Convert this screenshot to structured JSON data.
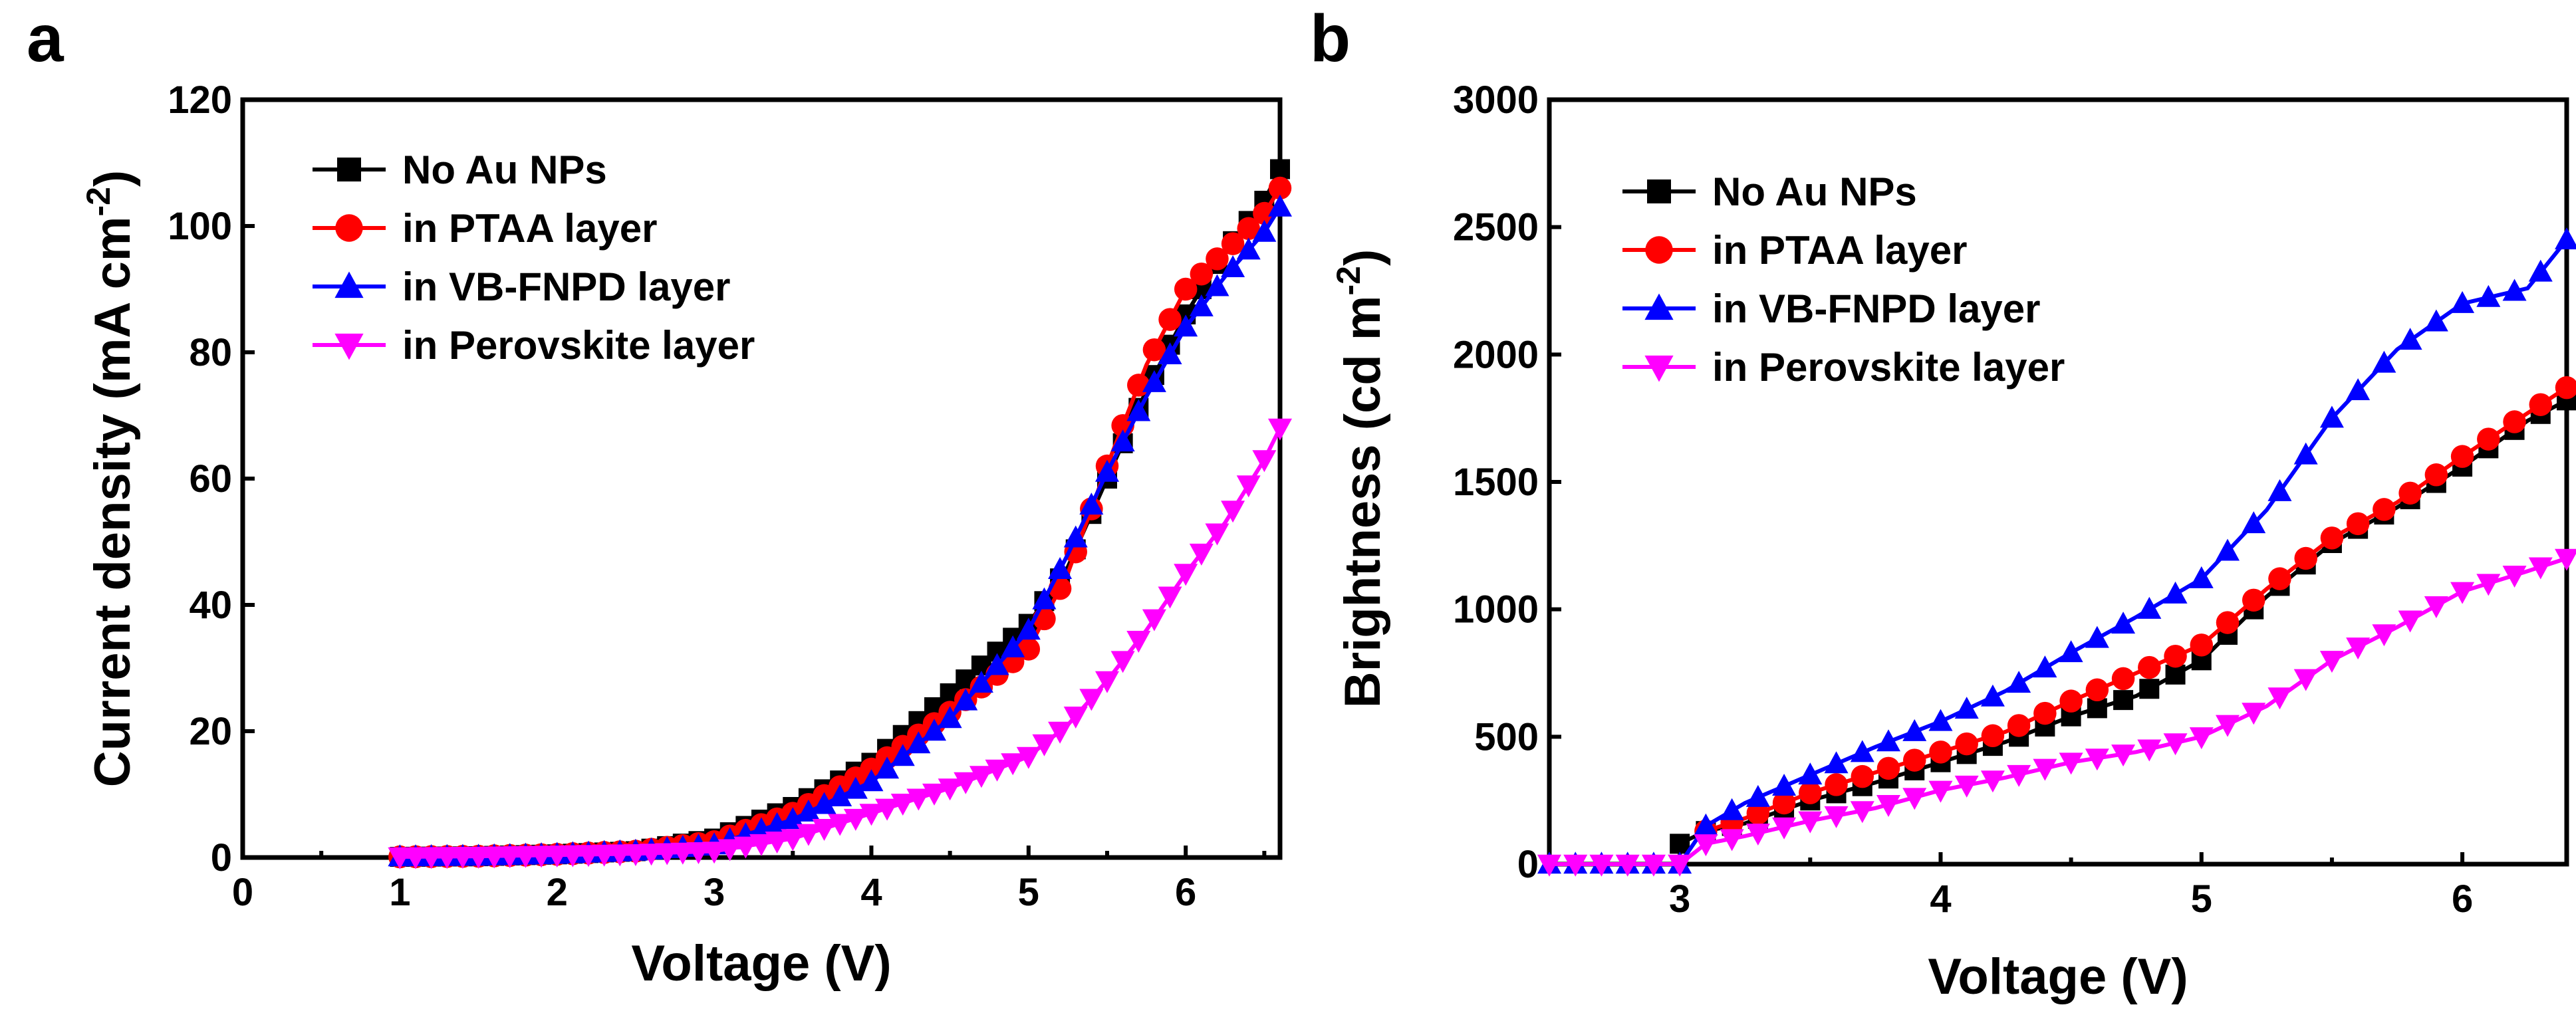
{
  "figure_labels": {
    "a": "a",
    "b": "b"
  },
  "colors": {
    "no_au": "#000000",
    "ptaa": "#ff0000",
    "vbfnpd": "#0000ff",
    "perovskite": "#ff00ff"
  },
  "chart_data": [
    {
      "type": "line",
      "panel": "a",
      "xlabel": "Voltage (V)",
      "ylabel_main": "Current density (mA cm",
      "ylabel_sup": "-2",
      "ylabel_close": ")",
      "xlim": [
        0,
        6.6
      ],
      "ylim": [
        0,
        120
      ],
      "xticks": [
        0,
        1,
        2,
        3,
        4,
        5,
        6
      ],
      "yticks": [
        0,
        20,
        40,
        60,
        80,
        100,
        120
      ],
      "legend_position": "top-left",
      "series": [
        {
          "name": "No Au NPs",
          "marker": "square",
          "color": "#000000",
          "points": [
            [
              1,
              0.1
            ],
            [
              1.5,
              0.2
            ],
            [
              2,
              0.5
            ],
            [
              2.5,
              1
            ],
            [
              3,
              3
            ],
            [
              3.5,
              8
            ],
            [
              4,
              15
            ],
            [
              4.5,
              26
            ],
            [
              5,
              37
            ],
            [
              5.25,
              46
            ],
            [
              5.5,
              60
            ],
            [
              5.75,
              74
            ],
            [
              6,
              86
            ],
            [
              6.25,
              96
            ],
            [
              6.5,
              104
            ],
            [
              6.6,
              109
            ]
          ]
        },
        {
          "name": "in PTAA layer",
          "marker": "circle",
          "color": "#ff0000",
          "points": [
            [
              1,
              0.1
            ],
            [
              1.5,
              0.2
            ],
            [
              2,
              0.5
            ],
            [
              2.5,
              1
            ],
            [
              3,
              2.5
            ],
            [
              3.5,
              7
            ],
            [
              4,
              14
            ],
            [
              4.5,
              23
            ],
            [
              5,
              33
            ],
            [
              5.25,
              45
            ],
            [
              5.5,
              62
            ],
            [
              5.75,
              78
            ],
            [
              6,
              90
            ],
            [
              6.25,
              96
            ],
            [
              6.5,
              102
            ],
            [
              6.6,
              106
            ]
          ]
        },
        {
          "name": "in VB-FNPD layer",
          "marker": "triangle-up",
          "color": "#0000ff",
          "points": [
            [
              1,
              0.1
            ],
            [
              1.5,
              0.2
            ],
            [
              2,
              0.5
            ],
            [
              2.5,
              1
            ],
            [
              3,
              2
            ],
            [
              3.5,
              6
            ],
            [
              4,
              12
            ],
            [
              4.5,
              22
            ],
            [
              5,
              36
            ],
            [
              5.25,
              48
            ],
            [
              5.5,
              61
            ],
            [
              5.75,
              73
            ],
            [
              6,
              84
            ],
            [
              6.25,
              92
            ],
            [
              6.5,
              99
            ],
            [
              6.6,
              103
            ]
          ]
        },
        {
          "name": "in Perovskite layer",
          "marker": "triangle-down",
          "color": "#ff00ff",
          "points": [
            [
              1,
              0.1
            ],
            [
              1.5,
              0.2
            ],
            [
              2,
              0.4
            ],
            [
              2.5,
              0.6
            ],
            [
              3,
              1
            ],
            [
              3.5,
              3
            ],
            [
              4,
              7
            ],
            [
              4.5,
              11
            ],
            [
              5,
              16
            ],
            [
              5.25,
              21
            ],
            [
              5.5,
              28
            ],
            [
              5.75,
              36
            ],
            [
              6,
              45
            ],
            [
              6.25,
              53
            ],
            [
              6.5,
              63
            ],
            [
              6.6,
              68
            ]
          ]
        }
      ]
    },
    {
      "type": "line",
      "panel": "b",
      "xlabel": "Voltage (V)",
      "ylabel_main": "Brightness (cd m",
      "ylabel_sup": "-2",
      "ylabel_close": ")",
      "xlim": [
        2.5,
        6.4
      ],
      "ylim": [
        0,
        3000
      ],
      "xticks": [
        3,
        4,
        5,
        6
      ],
      "yticks": [
        0,
        500,
        1000,
        1500,
        2000,
        2500,
        3000
      ],
      "legend_position": "top-left",
      "series": [
        {
          "name": "No Au NPs",
          "marker": "square",
          "color": "#000000",
          "points": [
            [
              3,
              80
            ],
            [
              3.1,
              130
            ],
            [
              3.25,
              160
            ],
            [
              3.5,
              250
            ],
            [
              3.75,
              320
            ],
            [
              4,
              400
            ],
            [
              4.25,
              480
            ],
            [
              4.5,
              580
            ],
            [
              4.75,
              660
            ],
            [
              5,
              800
            ],
            [
              5.25,
              1050
            ],
            [
              5.5,
              1260
            ],
            [
              5.75,
              1400
            ],
            [
              6,
              1560
            ],
            [
              6.25,
              1740
            ],
            [
              6.4,
              1820
            ]
          ]
        },
        {
          "name": "in PTAA layer",
          "marker": "circle",
          "color": "#ff0000",
          "points": [
            [
              3.1,
              130
            ],
            [
              3.25,
              180
            ],
            [
              3.5,
              280
            ],
            [
              3.75,
              360
            ],
            [
              4,
              440
            ],
            [
              4.25,
              520
            ],
            [
              4.5,
              640
            ],
            [
              4.75,
              750
            ],
            [
              5,
              860
            ],
            [
              5.25,
              1080
            ],
            [
              5.5,
              1280
            ],
            [
              5.75,
              1420
            ],
            [
              6,
              1600
            ],
            [
              6.25,
              1770
            ],
            [
              6.4,
              1870
            ]
          ]
        },
        {
          "name": "in VB-FNPD layer",
          "marker": "triangle-up",
          "color": "#0000ff",
          "points": [
            [
              2.5,
              0
            ],
            [
              2.75,
              0
            ],
            [
              3,
              0
            ],
            [
              3.1,
              150
            ],
            [
              3.25,
              240
            ],
            [
              3.5,
              350
            ],
            [
              3.75,
              460
            ],
            [
              4,
              560
            ],
            [
              4.25,
              680
            ],
            [
              4.5,
              830
            ],
            [
              4.75,
              970
            ],
            [
              5,
              1120
            ],
            [
              5.25,
              1390
            ],
            [
              5.5,
              1750
            ],
            [
              5.75,
              2020
            ],
            [
              6,
              2200
            ],
            [
              6.25,
              2260
            ],
            [
              6.4,
              2450
            ]
          ]
        },
        {
          "name": "in Perovskite layer",
          "marker": "triangle-down",
          "color": "#ff00ff",
          "points": [
            [
              2.5,
              0
            ],
            [
              2.75,
              0
            ],
            [
              3,
              0
            ],
            [
              3.1,
              80
            ],
            [
              3.25,
              110
            ],
            [
              3.5,
              170
            ],
            [
              3.75,
              220
            ],
            [
              4,
              290
            ],
            [
              4.25,
              340
            ],
            [
              4.5,
              400
            ],
            [
              4.75,
              440
            ],
            [
              5,
              500
            ],
            [
              5.25,
              620
            ],
            [
              5.5,
              800
            ],
            [
              5.75,
              930
            ],
            [
              6,
              1070
            ],
            [
              6.25,
              1150
            ],
            [
              6.4,
              1200
            ]
          ]
        }
      ]
    }
  ]
}
